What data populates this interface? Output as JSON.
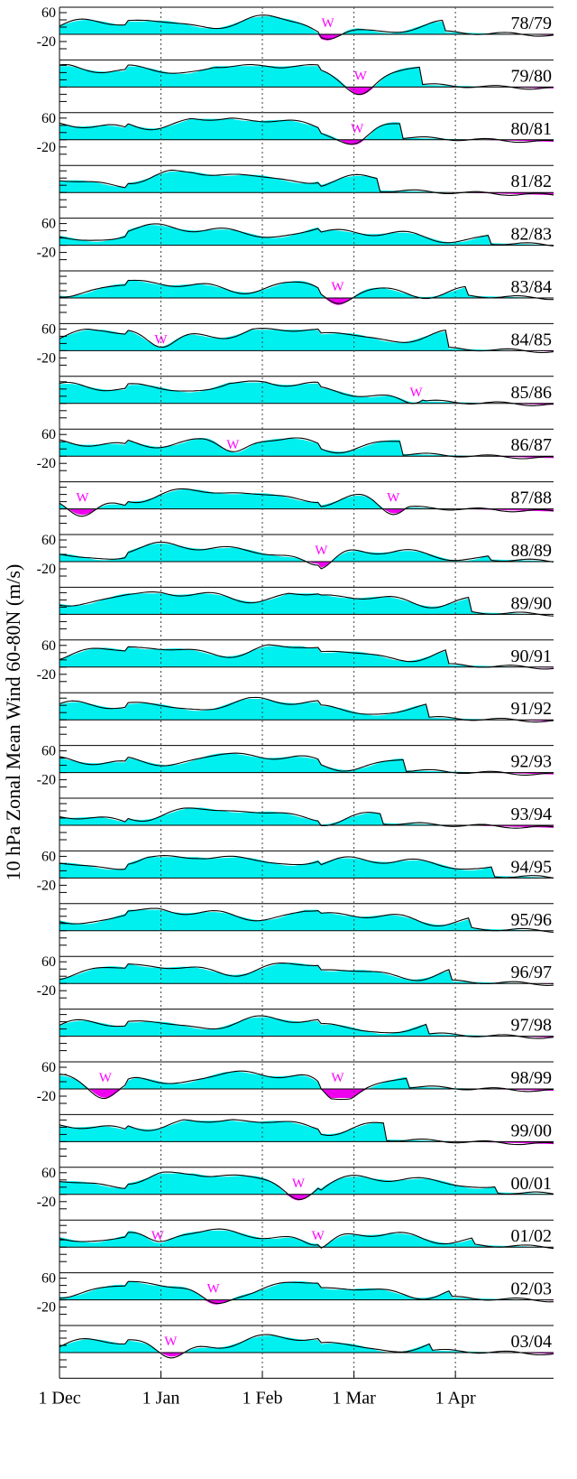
{
  "chart_data": {
    "type": "area",
    "ylabel": "10 hPa Zonal Mean Wind 60-80N (m/s)",
    "x_tick_labels": [
      "1 Dec",
      "1 Jan",
      "1 Feb",
      "1 Mar",
      "1 Apr"
    ],
    "x_tick_days": [
      0,
      31,
      62,
      90,
      121
    ],
    "x_range_days": [
      0,
      151
    ],
    "y_tick_values": [
      60,
      -20
    ],
    "y_range": [
      -40,
      60
    ],
    "warming_marker_label": "W",
    "colors": {
      "positive_fill": "#00f0f0",
      "negative_fill": "#ee00ee",
      "line": "#000000",
      "marker": "#ff00ff",
      "grid": "#444444"
    },
    "seasons": [
      {
        "label": "78/79",
        "warmings": [
          82
        ]
      },
      {
        "label": "79/80",
        "warmings": [
          92
        ]
      },
      {
        "label": "80/81",
        "warmings": [
          91
        ]
      },
      {
        "label": "81/82",
        "warmings": []
      },
      {
        "label": "82/83",
        "warmings": []
      },
      {
        "label": "83/84",
        "warmings": [
          85
        ]
      },
      {
        "label": "84/85",
        "warmings": [
          31
        ]
      },
      {
        "label": "85/86",
        "warmings": [
          109
        ]
      },
      {
        "label": "86/87",
        "warmings": [
          53
        ]
      },
      {
        "label": "87/88",
        "warmings": [
          7,
          102
        ]
      },
      {
        "label": "88/89",
        "warmings": [
          80
        ]
      },
      {
        "label": "89/90",
        "warmings": []
      },
      {
        "label": "90/91",
        "warmings": []
      },
      {
        "label": "91/92",
        "warmings": []
      },
      {
        "label": "92/93",
        "warmings": []
      },
      {
        "label": "93/94",
        "warmings": []
      },
      {
        "label": "94/95",
        "warmings": []
      },
      {
        "label": "95/96",
        "warmings": []
      },
      {
        "label": "96/97",
        "warmings": []
      },
      {
        "label": "97/98",
        "warmings": []
      },
      {
        "label": "98/99",
        "warmings": [
          14,
          85
        ]
      },
      {
        "label": "99/00",
        "warmings": []
      },
      {
        "label": "00/01",
        "warmings": [
          73
        ]
      },
      {
        "label": "01/02",
        "warmings": [
          30,
          79
        ]
      },
      {
        "label": "02/03",
        "warmings": [
          47
        ]
      },
      {
        "label": "03/04",
        "warmings": [
          34
        ]
      }
    ]
  }
}
